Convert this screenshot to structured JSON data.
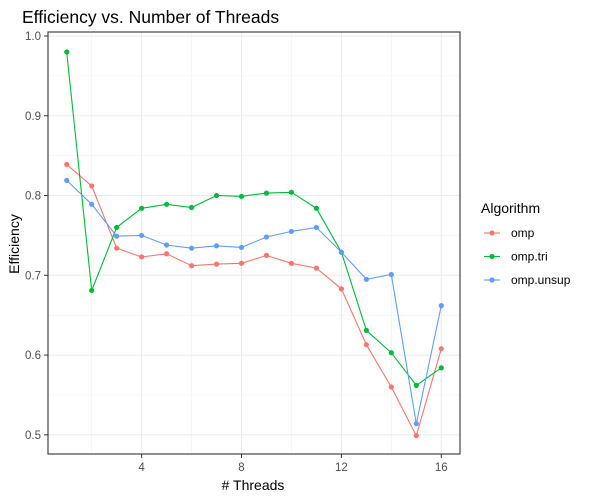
{
  "chart_data": {
    "type": "line",
    "title": "Efficiency vs. Number of Threads",
    "xlabel": "# Threads",
    "ylabel": "Efficiency",
    "xlim": [
      0.25,
      16.75
    ],
    "ylim": [
      0.476,
      1.005
    ],
    "x_ticks": [
      4,
      8,
      12,
      16
    ],
    "y_ticks": [
      0.5,
      0.6,
      0.7,
      0.8,
      0.9,
      1.0
    ],
    "y_tick_labels": [
      "0.5",
      "0.6",
      "0.7",
      "0.8",
      "0.9",
      "1.0"
    ],
    "grid": true,
    "legend_title": "Algorithm",
    "legend_position": "right",
    "x": [
      1,
      2,
      3,
      4,
      5,
      6,
      7,
      8,
      9,
      10,
      11,
      12,
      13,
      14,
      15,
      16
    ],
    "series": [
      {
        "name": "omp",
        "color": "#F8766D",
        "values": [
          0.839,
          0.812,
          0.734,
          0.723,
          0.727,
          0.712,
          0.714,
          0.715,
          0.725,
          0.715,
          0.709,
          0.683,
          0.613,
          0.56,
          0.499,
          0.608
        ]
      },
      {
        "name": "omp.tri",
        "color": "#00BA38",
        "values": [
          0.98,
          0.681,
          0.76,
          0.784,
          0.789,
          0.785,
          0.8,
          0.799,
          0.803,
          0.804,
          0.784,
          0.729,
          0.631,
          0.603,
          0.562,
          0.584
        ]
      },
      {
        "name": "omp.unsup",
        "color": "#619CFF",
        "values": [
          0.819,
          0.789,
          0.749,
          0.75,
          0.738,
          0.734,
          0.737,
          0.735,
          0.748,
          0.755,
          0.76,
          0.729,
          0.695,
          0.701,
          0.514,
          0.662
        ]
      }
    ]
  }
}
